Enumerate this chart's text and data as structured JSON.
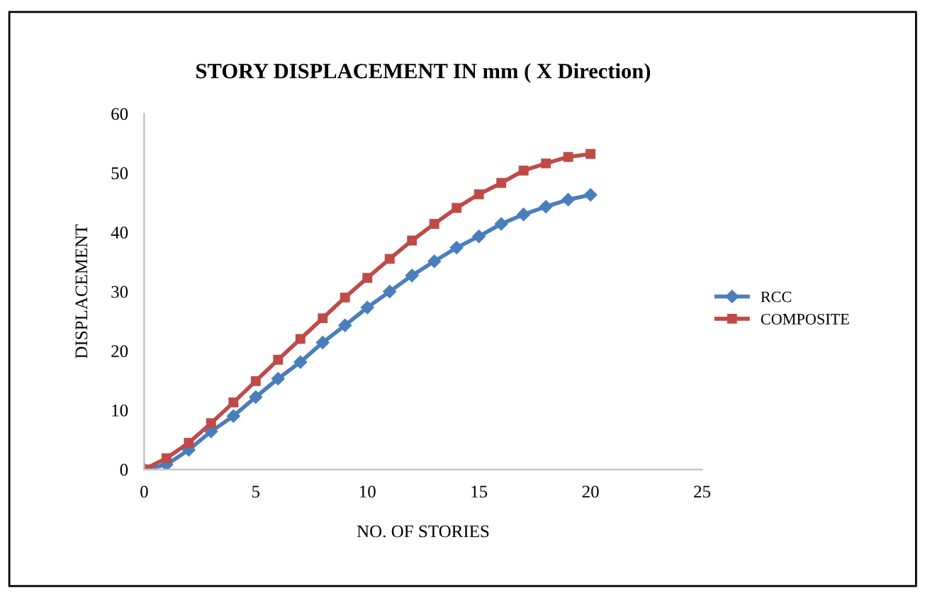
{
  "chart_data": {
    "type": "line",
    "title": "STORY DISPLACEMENT IN mm ( X Direction)",
    "xlabel": "NO. OF STORIES",
    "ylabel": "DISPLACEMENT",
    "x": [
      0,
      1,
      2,
      3,
      4,
      5,
      6,
      7,
      8,
      9,
      10,
      11,
      12,
      13,
      14,
      15,
      16,
      17,
      18,
      19,
      20
    ],
    "series": [
      {
        "name": "RCC",
        "color": "#4a7ebb",
        "marker": "diamond",
        "values": [
          0,
          0.8,
          3.3,
          6.4,
          9.0,
          12.2,
          15.3,
          18.1,
          21.4,
          24.3,
          27.3,
          30.0,
          32.7,
          35.1,
          37.4,
          39.3,
          41.4,
          43.0,
          44.3,
          45.5,
          46.3
        ]
      },
      {
        "name": "COMPOSITE",
        "color": "#be4b48",
        "marker": "square",
        "values": [
          0,
          1.9,
          4.5,
          7.8,
          11.3,
          14.9,
          18.5,
          22.0,
          25.5,
          29.0,
          32.3,
          35.5,
          38.6,
          41.4,
          44.1,
          46.4,
          48.3,
          50.4,
          51.6,
          52.7,
          53.2
        ]
      }
    ],
    "xlim": [
      0,
      25
    ],
    "xticks": [
      0,
      5,
      10,
      15,
      20,
      25
    ],
    "ylim": [
      0,
      60
    ],
    "yticks": [
      0,
      10,
      20,
      30,
      40,
      50,
      60
    ],
    "grid": false,
    "legend": "right",
    "line_style": "solid"
  }
}
